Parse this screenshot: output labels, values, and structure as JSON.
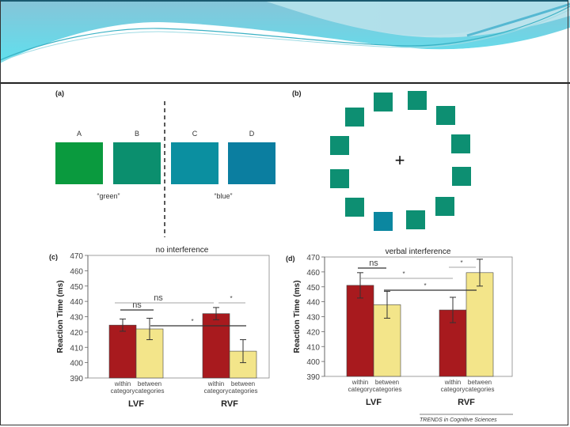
{
  "colors": {
    "header_light": "#a8dde9",
    "header_mid": "#6cc6dc",
    "header_dark": "#3a9fc0",
    "within_bar": "#a81a1e",
    "between_bar": "#f3e58a",
    "stim_A": "#0a9a3e",
    "stim_B": "#0b8f6e",
    "stim_C": "#0b8fa0",
    "stim_D": "#0b7ea0",
    "search_distractor": "#0d8f72",
    "search_target": "#0b87a0"
  },
  "panel_a": {
    "label": "(a)",
    "stimuli": [
      {
        "letter": "A",
        "color_key": "stim_A"
      },
      {
        "letter": "B",
        "color_key": "stim_B"
      },
      {
        "letter": "C",
        "color_key": "stim_C"
      },
      {
        "letter": "D",
        "color_key": "stim_D"
      }
    ],
    "category_labels": [
      "“green”",
      "“blue”"
    ]
  },
  "panel_b": {
    "label": "(b)",
    "fixation": "+",
    "item_count": 12,
    "target_index": 7
  },
  "chart_data": [
    {
      "type": "bar",
      "panel_label": "(c)",
      "title": "no interference",
      "ylabel": "Reaction Time (ms)",
      "ylim": [
        390,
        470
      ],
      "yticks": [
        390,
        400,
        410,
        420,
        430,
        440,
        450,
        460,
        470
      ],
      "groups": [
        "LVF",
        "RVF"
      ],
      "categories": [
        "within\ncategory",
        "between\ncategories"
      ],
      "series": [
        {
          "name": "within category",
          "values": [
            424.5,
            432
          ],
          "errors": [
            4,
            4
          ]
        },
        {
          "name": "between categories",
          "values": [
            422,
            407.5
          ],
          "errors": [
            7,
            7.5
          ]
        }
      ],
      "annotations": [
        {
          "text": "ns",
          "between": "LVF-within vs LVF-between"
        },
        {
          "text": "ns",
          "between": "LVF-within vs RVF-within"
        },
        {
          "text": "*",
          "between": "RVF-within vs RVF-between"
        },
        {
          "text": "*",
          "between": "LVF-between vs RVF-within"
        }
      ]
    },
    {
      "type": "bar",
      "panel_label": "(d)",
      "title": "verbal interference",
      "ylabel": "Reaction Time (ms)",
      "ylim": [
        390,
        470
      ],
      "yticks": [
        390,
        400,
        410,
        420,
        430,
        440,
        450,
        460,
        470
      ],
      "groups": [
        "LVF",
        "RVF"
      ],
      "categories": [
        "within\ncategory",
        "between\ncategories"
      ],
      "series": [
        {
          "name": "within category",
          "values": [
            451,
            434.5
          ],
          "errors": [
            8.5,
            8.5
          ]
        },
        {
          "name": "between categories",
          "values": [
            438,
            459.5
          ],
          "errors": [
            9,
            9
          ]
        }
      ],
      "annotations": [
        {
          "text": "ns",
          "between": "LVF-within vs LVF-between"
        },
        {
          "text": "*",
          "between": "LVF-within vs RVF-within"
        },
        {
          "text": "*",
          "between": "LVF-between vs RVF-between"
        },
        {
          "text": "*",
          "between": "RVF-within vs RVF-between"
        }
      ]
    }
  ],
  "credit": "TRENDS in Cognitive Sciences"
}
